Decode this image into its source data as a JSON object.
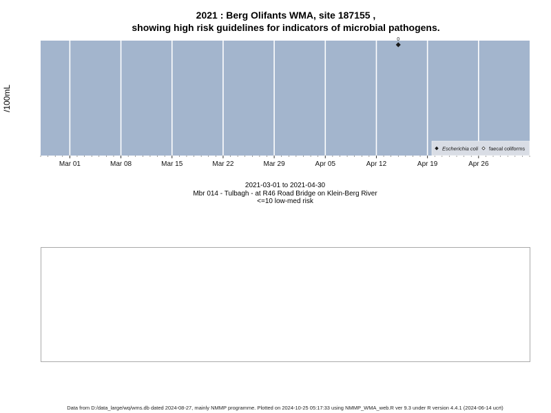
{
  "title": {
    "line1": "2021 : Berg Olifants WMA, site 187155 ,",
    "line2": "showing high risk guidelines for indicators of microbial pathogens."
  },
  "axis": {
    "ylabel": "/100mL"
  },
  "caption": {
    "date_range": "2021-03-01 to 2021-04-30",
    "site": "Mbr 014 - Tulbagh - at R46 Road Bridge on Klein-Berg River",
    "risk": "<=10 low-med risk"
  },
  "footer": "Data from D:/data_large/wq/wms.db dated 2024-08-27, mainly NMMP programme. Plotted on 2024-10-25 05:17:33 using NMMP_WMA_web.R ver 9.3 under R version 4.4.1 (2024-06-14 ucrt)",
  "colors": {
    "panel_bg": "#a3b5cd",
    "gridline": "#ffffff",
    "point": "#1a1a1a",
    "legend_bg": "#d9dde5"
  },
  "chart_data": {
    "type": "scatter",
    "xlim": [
      "2021-02-25",
      "2021-05-03"
    ],
    "xticks": [
      {
        "date": "2021-03-01",
        "label": "Mar 01"
      },
      {
        "date": "2021-03-08",
        "label": "Mar 08"
      },
      {
        "date": "2021-03-15",
        "label": "Mar 15"
      },
      {
        "date": "2021-03-22",
        "label": "Mar 22"
      },
      {
        "date": "2021-03-29",
        "label": "Mar 29"
      },
      {
        "date": "2021-04-05",
        "label": "Apr 05"
      },
      {
        "date": "2021-04-12",
        "label": "Apr 12"
      },
      {
        "date": "2021-04-19",
        "label": "Apr 19"
      },
      {
        "date": "2021-04-26",
        "label": "Apr 26"
      }
    ],
    "grid": true,
    "legend_position": "bottom-right",
    "series": [
      {
        "name": "Escherichia coli",
        "marker": "filled-diamond",
        "points": [
          {
            "x": "2021-04-15",
            "y": 0,
            "label": "0"
          }
        ]
      },
      {
        "name": "faecal coliforms",
        "marker": "open-diamond",
        "points": []
      }
    ]
  }
}
